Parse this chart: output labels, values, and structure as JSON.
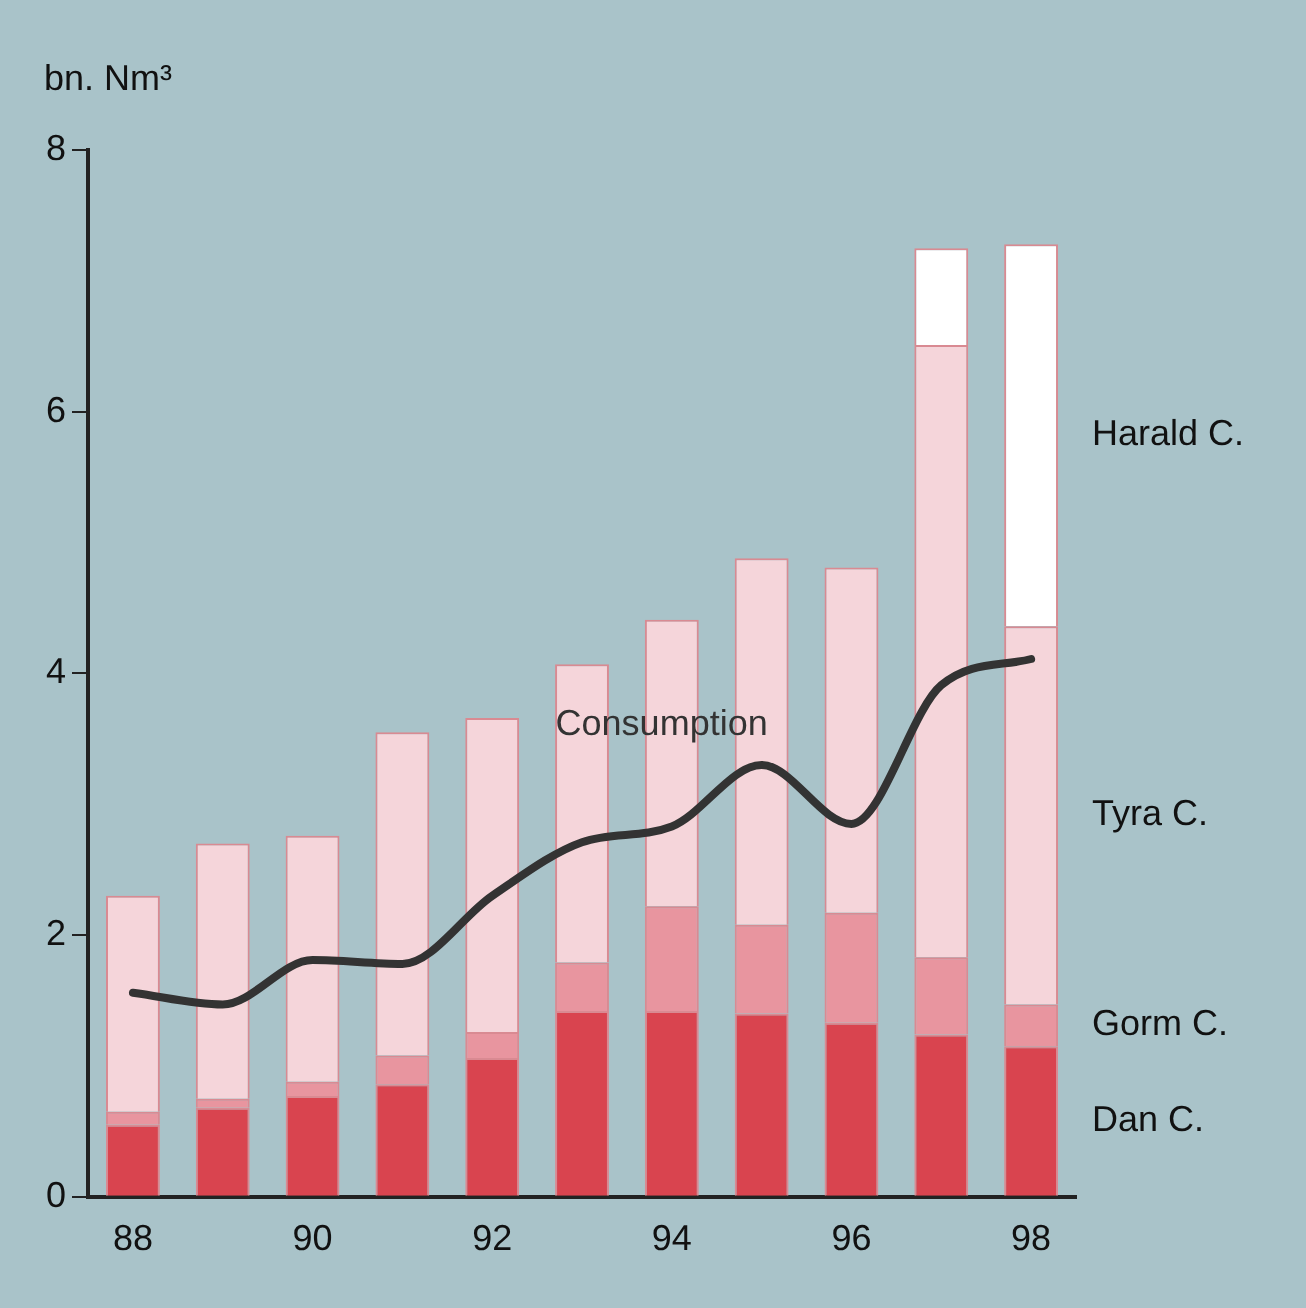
{
  "chart_data": {
    "type": "bar",
    "stacked": true,
    "ylabel": "bn. Nm³",
    "categories": [
      "88",
      null,
      "90",
      null,
      "92",
      null,
      "94",
      null,
      "96",
      null,
      "98"
    ],
    "series": [
      {
        "name": "Dan C.",
        "color": "#d9444f",
        "values": [
          0.55,
          0.68,
          0.77,
          0.86,
          1.06,
          1.42,
          1.42,
          1.4,
          1.33,
          1.24,
          1.15
        ]
      },
      {
        "name": "Gorm C.",
        "color": "#e8959f",
        "values": [
          0.1,
          0.07,
          0.11,
          0.22,
          0.2,
          0.37,
          0.8,
          0.68,
          0.84,
          0.59,
          0.32
        ]
      },
      {
        "name": "Tyra C.",
        "color": "#f5d5da",
        "values": [
          1.65,
          1.95,
          1.88,
          2.47,
          2.4,
          2.28,
          2.19,
          2.8,
          2.64,
          4.68,
          2.89
        ]
      },
      {
        "name": "Harald C.",
        "color": "#ffffff",
        "values": [
          null,
          null,
          null,
          null,
          null,
          null,
          null,
          null,
          null,
          0.74,
          2.92
        ]
      },
      {
        "name": "Consumption",
        "type": "line",
        "color": "#333333",
        "values": [
          1.56,
          1.47,
          1.81,
          1.78,
          2.3,
          2.71,
          2.83,
          3.3,
          2.85,
          3.91,
          4.11
        ]
      }
    ],
    "ylim": [
      0,
      8
    ],
    "yticks": [
      0,
      2,
      4,
      6,
      8
    ],
    "grid": false,
    "legend": false
  }
}
